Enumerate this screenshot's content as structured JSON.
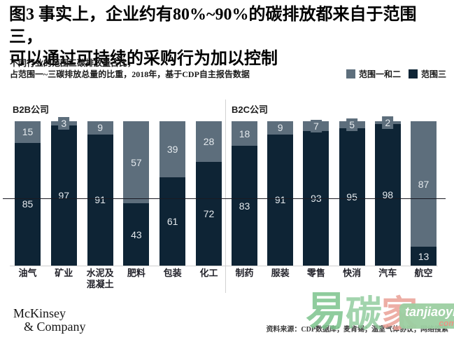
{
  "header": {
    "title_line1": "图3 事实上，企业约有80%~90%的碳排放都来自于范围三，",
    "title_line2": "可以通过可持续的采购行为加以控制",
    "subtitle_line1": "不同行业的范围三碳排放量占比，",
    "subtitle_line2": "占范围一~三碳排放总量的比重，2018年，基于CDP自主报告数据"
  },
  "legend": {
    "scope12_label": "范围一和二",
    "scope3_label": "范围三"
  },
  "colors": {
    "scope12_gray": "#5d6e7c",
    "scope3_navy": "#0e2435",
    "bar_label_text": "#e4e9ed",
    "watermark_green": "#7cc48d",
    "watermark_green2": "#8cca99",
    "watermark_salmon": "#eaa096",
    "watermark_badge_bg": "#9ccfa2",
    "watermark_badge_sub": "#e98f7f"
  },
  "chart_data": {
    "type": "bar",
    "subtype": "stacked-100-percent",
    "title": "图3 事实上，企业约有80%~90%的碳排放都来自于范围三，可以通过可持续的采购行为加以控制",
    "subtitle": "不同行业的范围三碳排放量占比，占范围一~三碳排放总量的比重，2018年，基于CDP自主报告数据",
    "ylim": [
      0,
      100
    ],
    "grid": false,
    "legend_position": "top-right",
    "legend": [
      "范围一和二",
      "范围三"
    ],
    "groups": [
      {
        "label": "B2B公司",
        "categories": [
          "油气",
          "矿业",
          "水泥及\n混凝土",
          "肥料",
          "包装",
          "化工"
        ],
        "series": [
          {
            "name": "范围三",
            "values": [
              85,
              97,
              91,
              43,
              61,
              72
            ]
          },
          {
            "name": "范围一和二",
            "values": [
              15,
              3,
              9,
              57,
              39,
              28
            ]
          }
        ]
      },
      {
        "label": "B2C公司",
        "categories": [
          "制药",
          "服装",
          "零售",
          "快消",
          "汽车",
          "航空"
        ],
        "series": [
          {
            "name": "范围三",
            "values": [
              83,
              91,
              93,
              95,
              98,
              13
            ]
          },
          {
            "name": "范围一和二",
            "values": [
              18,
              9,
              7,
              5,
              2,
              87
            ]
          }
        ]
      }
    ]
  },
  "footer": {
    "logo_line1": "McKinsey",
    "logo_line2": "& Company",
    "source": "资料来源：CDP数据库；麦肯锡；温室气体协议；网络搜索"
  },
  "watermark": {
    "char1": "易",
    "char2": "碳",
    "char3": "家",
    "badge_text": "tanjiaoyi",
    "badge_sub": "com"
  }
}
